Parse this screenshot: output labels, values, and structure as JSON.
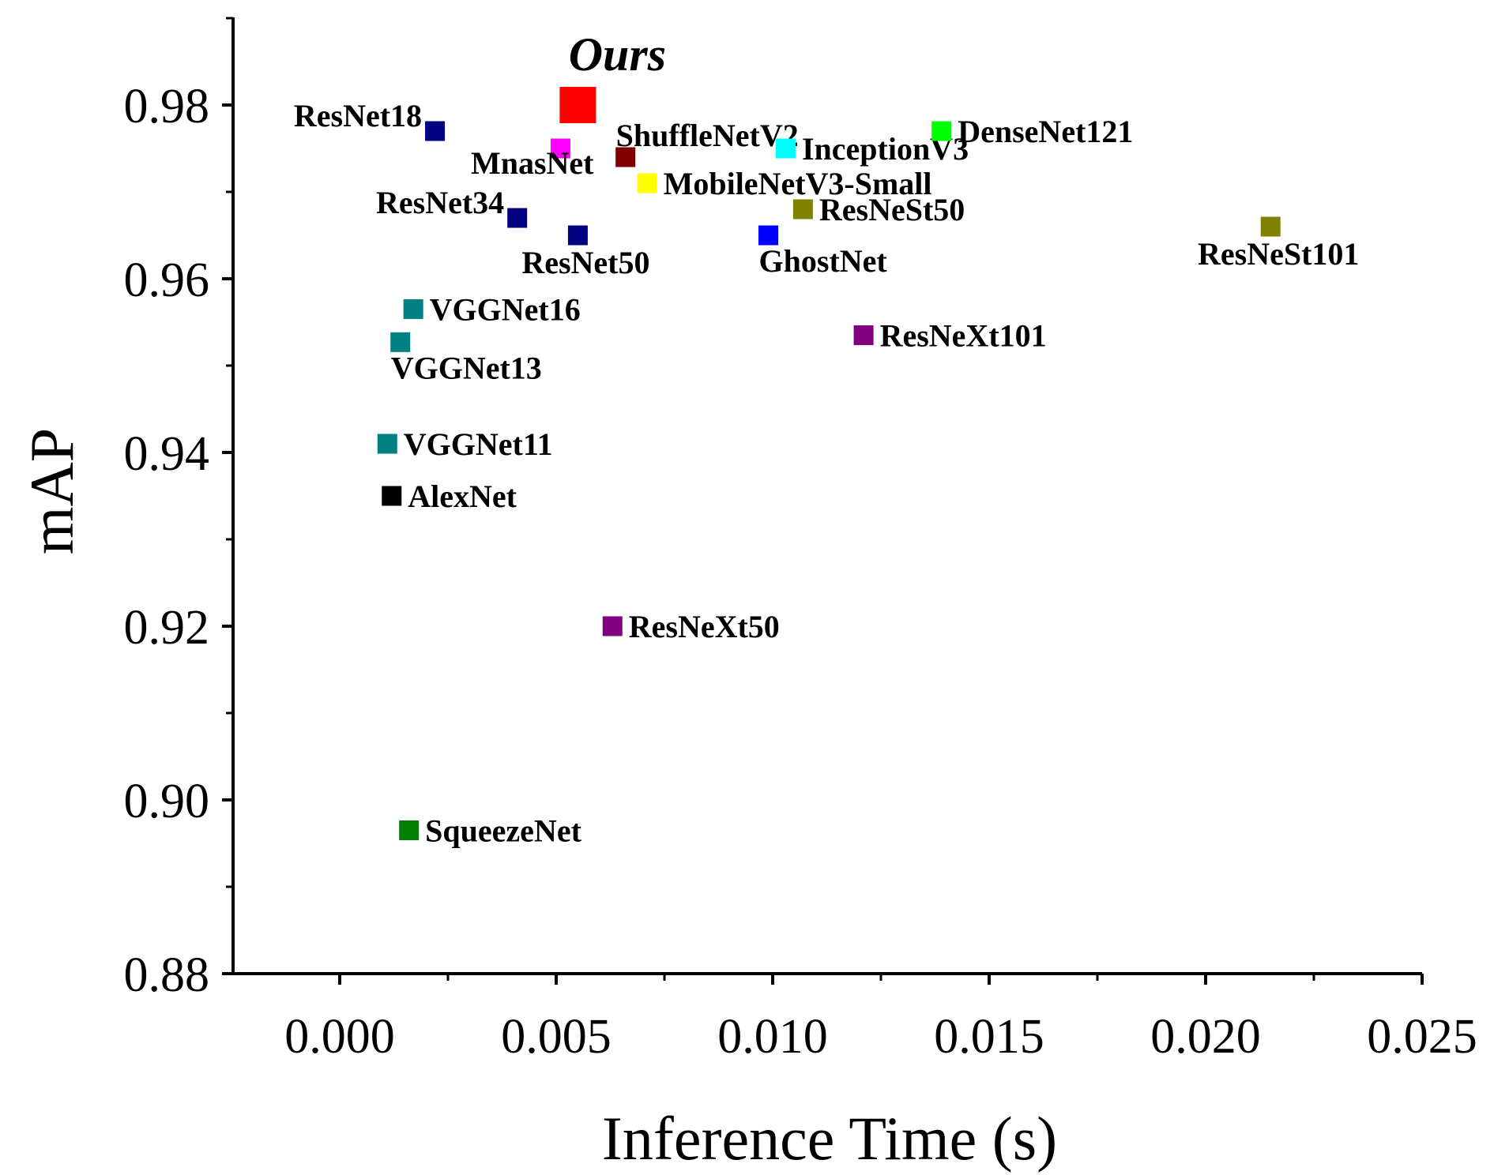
{
  "chart_data": {
    "type": "scatter",
    "title": "",
    "xlabel": "Inference Time (s)",
    "ylabel": "mAP",
    "xlim": [
      -0.0025,
      0.025
    ],
    "ylim": [
      0.88,
      0.99
    ],
    "xticks": [
      0.0,
      0.005,
      0.01,
      0.015,
      0.02,
      0.025
    ],
    "xtick_labels": [
      "0.000",
      "0.005",
      "0.010",
      "0.015",
      "0.020",
      "0.025"
    ],
    "yticks": [
      0.88,
      0.9,
      0.92,
      0.94,
      0.96,
      0.98
    ],
    "ytick_labels": [
      "0.88",
      "0.90",
      "0.92",
      "0.94",
      "0.96",
      "0.98"
    ],
    "grid": false,
    "points": [
      {
        "label": "Ours",
        "x": 0.0055,
        "y": 0.98,
        "color": "#ff0000",
        "highlight": true,
        "label_pos": "above"
      },
      {
        "label": "ResNet18",
        "x": 0.0022,
        "y": 0.977,
        "color": "#000080",
        "label_pos": "left"
      },
      {
        "label": "MnasNet",
        "x": 0.0051,
        "y": 0.975,
        "color": "#ff00ff",
        "label_pos": "below-left"
      },
      {
        "label": "ShuffleNetV2",
        "x": 0.0066,
        "y": 0.974,
        "color": "#800000",
        "label_pos": "above-right"
      },
      {
        "label": "InceptionV3",
        "x": 0.0103,
        "y": 0.975,
        "color": "#00ffff",
        "label_pos": "right"
      },
      {
        "label": "DenseNet121",
        "x": 0.0139,
        "y": 0.977,
        "color": "#00ff00",
        "label_pos": "right"
      },
      {
        "label": "MobileNetV3-Small",
        "x": 0.0071,
        "y": 0.971,
        "color": "#ffff00",
        "label_pos": "right"
      },
      {
        "label": "ResNet34",
        "x": 0.0041,
        "y": 0.967,
        "color": "#000080",
        "label_pos": "left"
      },
      {
        "label": "ResNet50",
        "x": 0.0055,
        "y": 0.965,
        "color": "#000080",
        "label_pos": "below"
      },
      {
        "label": "GhostNet",
        "x": 0.0099,
        "y": 0.965,
        "color": "#0000ff",
        "label_pos": "below-right"
      },
      {
        "label": "ResNeSt50",
        "x": 0.0107,
        "y": 0.968,
        "color": "#808000",
        "label_pos": "right"
      },
      {
        "label": "ResNeSt101",
        "x": 0.0215,
        "y": 0.966,
        "color": "#808000",
        "label_pos": "below"
      },
      {
        "label": "VGGNet16",
        "x": 0.0017,
        "y": 0.9565,
        "color": "#008080",
        "label_pos": "right"
      },
      {
        "label": "VGGNet13",
        "x": 0.0014,
        "y": 0.9527,
        "color": "#008080",
        "label_pos": "below-right"
      },
      {
        "label": "ResNeXt101",
        "x": 0.0121,
        "y": 0.9535,
        "color": "#800080",
        "label_pos": "right"
      },
      {
        "label": "VGGNet11",
        "x": 0.0011,
        "y": 0.941,
        "color": "#008080",
        "label_pos": "right"
      },
      {
        "label": "AlexNet",
        "x": 0.0012,
        "y": 0.935,
        "color": "#000000",
        "label_pos": "right"
      },
      {
        "label": "ResNeXt50",
        "x": 0.0063,
        "y": 0.92,
        "color": "#800080",
        "label_pos": "right"
      },
      {
        "label": "SqueezeNet",
        "x": 0.0016,
        "y": 0.8965,
        "color": "#008000",
        "label_pos": "right"
      }
    ]
  }
}
